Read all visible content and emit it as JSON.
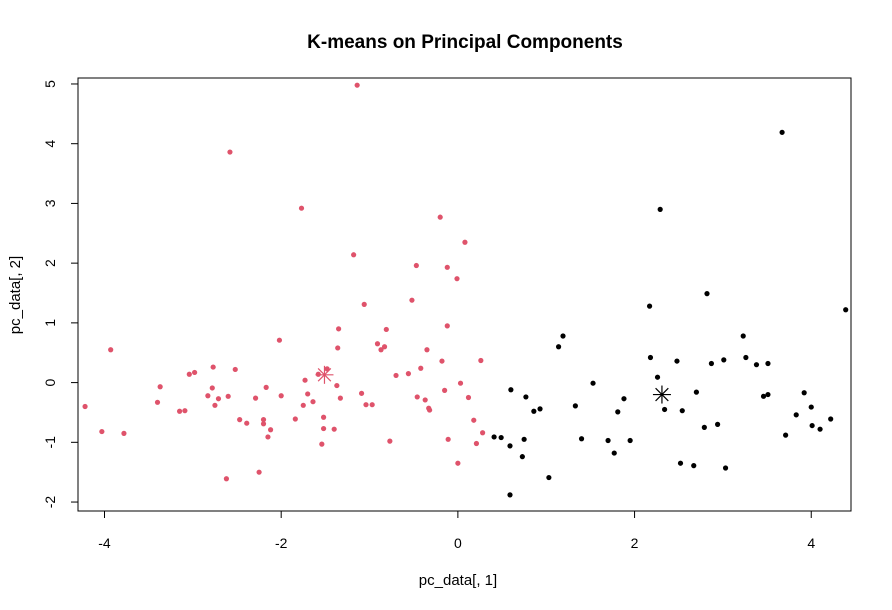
{
  "chart_data": {
    "type": "scatter",
    "title": "K-means on Principal Components",
    "xlabel": "pc_data[, 1]",
    "ylabel": "pc_data[, 2]",
    "xlim": [
      -4.3,
      4.45
    ],
    "ylim": [
      -2.15,
      5.1
    ],
    "xticks": [
      -4,
      -2,
      0,
      2,
      4
    ],
    "yticks": [
      -2,
      -1,
      0,
      1,
      2,
      3,
      4,
      5
    ],
    "xtick_labels": [
      "-4",
      "-2",
      "0",
      "2",
      "4"
    ],
    "ytick_labels": [
      "-2",
      "-1",
      "0",
      "1",
      "2",
      "3",
      "4",
      "5"
    ],
    "grid": false,
    "legend": "none",
    "series": [
      {
        "color": "#DF536B",
        "center": [
          -1.51,
          0.13
        ],
        "points": [
          [
            -4.22,
            -0.4
          ],
          [
            -4.03,
            -0.82
          ],
          [
            -3.93,
            0.55
          ],
          [
            -3.78,
            -0.85
          ],
          [
            -3.4,
            -0.33
          ],
          [
            -3.37,
            -0.07
          ],
          [
            -3.15,
            -0.48
          ],
          [
            -3.09,
            -0.47
          ],
          [
            -3.04,
            0.14
          ],
          [
            -2.98,
            0.17
          ],
          [
            -2.83,
            -0.22
          ],
          [
            -2.78,
            -0.09
          ],
          [
            -2.77,
            0.26
          ],
          [
            -2.75,
            -0.38
          ],
          [
            -2.71,
            -0.27
          ],
          [
            -2.62,
            -1.61
          ],
          [
            -2.6,
            -0.23
          ],
          [
            -2.58,
            3.86
          ],
          [
            -2.52,
            0.22
          ],
          [
            -2.47,
            -0.62
          ],
          [
            -2.39,
            -0.68
          ],
          [
            -2.29,
            -0.26
          ],
          [
            -2.25,
            -1.5
          ],
          [
            -2.2,
            -0.62
          ],
          [
            -2.2,
            -0.69
          ],
          [
            -2.17,
            -0.08
          ],
          [
            -2.15,
            -0.91
          ],
          [
            -2.12,
            -0.79
          ],
          [
            -2.02,
            0.71
          ],
          [
            -2.0,
            -0.22
          ],
          [
            -1.84,
            -0.61
          ],
          [
            -1.77,
            2.92
          ],
          [
            -1.75,
            -0.38
          ],
          [
            -1.73,
            0.04
          ],
          [
            -1.7,
            -0.19
          ],
          [
            -1.64,
            -0.32
          ],
          [
            -1.58,
            0.14
          ],
          [
            -1.54,
            -1.03
          ],
          [
            -1.52,
            -0.58
          ],
          [
            -1.52,
            -0.77
          ],
          [
            -1.48,
            0.23
          ],
          [
            -1.4,
            -0.78
          ],
          [
            -1.37,
            -0.05
          ],
          [
            -1.36,
            0.58
          ],
          [
            -1.35,
            0.9
          ],
          [
            -1.33,
            -0.26
          ],
          [
            -1.18,
            2.14
          ],
          [
            -1.14,
            4.98
          ],
          [
            -1.09,
            -0.18
          ],
          [
            -1.06,
            1.31
          ],
          [
            -1.04,
            -0.37
          ],
          [
            -0.97,
            -0.37
          ],
          [
            -0.91,
            0.65
          ],
          [
            -0.87,
            0.55
          ],
          [
            -0.83,
            0.6
          ],
          [
            -0.81,
            0.89
          ],
          [
            -0.77,
            -0.98
          ],
          [
            -0.7,
            0.12
          ],
          [
            -0.56,
            0.15
          ],
          [
            -0.52,
            1.38
          ],
          [
            -0.47,
            1.96
          ],
          [
            -0.46,
            -0.24
          ],
          [
            -0.42,
            0.24
          ],
          [
            -0.37,
            -0.29
          ],
          [
            -0.35,
            0.55
          ],
          [
            -0.33,
            -0.43
          ],
          [
            -0.32,
            -0.46
          ],
          [
            -0.2,
            2.77
          ],
          [
            -0.18,
            0.36
          ],
          [
            -0.15,
            -0.13
          ],
          [
            -0.12,
            1.93
          ],
          [
            -0.12,
            0.95
          ],
          [
            -0.11,
            -0.95
          ],
          [
            -0.01,
            1.74
          ],
          [
            0.0,
            -1.35
          ],
          [
            0.03,
            -0.01
          ],
          [
            0.08,
            2.35
          ],
          [
            0.12,
            -0.25
          ],
          [
            0.18,
            -0.63
          ],
          [
            0.21,
            -1.02
          ],
          [
            0.26,
            0.37
          ],
          [
            0.28,
            -0.84
          ]
        ]
      },
      {
        "color": "#000000",
        "center": [
          2.31,
          -0.2
        ],
        "points": [
          [
            0.41,
            -0.91
          ],
          [
            0.49,
            -0.92
          ],
          [
            0.59,
            -1.06
          ],
          [
            0.6,
            -0.12
          ],
          [
            0.59,
            -1.88
          ],
          [
            0.73,
            -1.24
          ],
          [
            0.75,
            -0.95
          ],
          [
            0.77,
            -0.24
          ],
          [
            0.86,
            -0.48
          ],
          [
            0.93,
            -0.44
          ],
          [
            1.03,
            -1.59
          ],
          [
            1.14,
            0.6
          ],
          [
            1.19,
            0.78
          ],
          [
            1.33,
            -0.39
          ],
          [
            1.4,
            -0.94
          ],
          [
            1.53,
            -0.01
          ],
          [
            1.7,
            -0.97
          ],
          [
            1.77,
            -1.18
          ],
          [
            1.81,
            -0.49
          ],
          [
            1.88,
            -0.27
          ],
          [
            1.95,
            -0.97
          ],
          [
            2.17,
            1.28
          ],
          [
            2.18,
            0.42
          ],
          [
            2.26,
            0.09
          ],
          [
            2.29,
            2.9
          ],
          [
            2.34,
            -0.45
          ],
          [
            2.48,
            0.36
          ],
          [
            2.52,
            -1.35
          ],
          [
            2.54,
            -0.47
          ],
          [
            2.67,
            -1.39
          ],
          [
            2.7,
            -0.16
          ],
          [
            2.79,
            -0.75
          ],
          [
            2.82,
            1.49
          ],
          [
            2.87,
            0.32
          ],
          [
            2.94,
            -0.7
          ],
          [
            3.01,
            0.38
          ],
          [
            3.03,
            -1.43
          ],
          [
            3.23,
            0.78
          ],
          [
            3.26,
            0.42
          ],
          [
            3.38,
            0.3
          ],
          [
            3.46,
            -0.23
          ],
          [
            3.51,
            -0.2
          ],
          [
            3.51,
            0.32
          ],
          [
            3.67,
            4.19
          ],
          [
            3.71,
            -0.88
          ],
          [
            3.83,
            -0.54
          ],
          [
            3.92,
            -0.17
          ],
          [
            4.0,
            -0.41
          ],
          [
            4.01,
            -0.72
          ],
          [
            4.1,
            -0.78
          ],
          [
            4.22,
            -0.61
          ],
          [
            4.39,
            1.22
          ]
        ]
      }
    ]
  }
}
